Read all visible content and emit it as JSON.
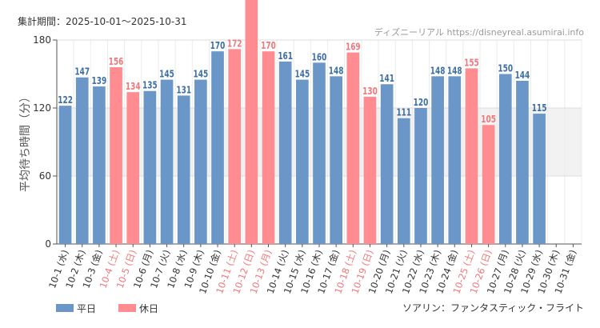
{
  "header": {
    "period_label": "集計期間：2025-10-01～2025-10-31",
    "credit": "ディズニーリアル https://disneyreal.asumirai.info"
  },
  "footer": {
    "attraction": "ソアリン：ファンタスティック・フライト"
  },
  "colors": {
    "weekday": "#6a97c8",
    "holiday": "#ff8c90",
    "weekday_label": "#3d6fa5",
    "holiday_label": "#f0787c",
    "band": "#f2f2f2",
    "axis_text": "#333333"
  },
  "chart_data": {
    "type": "bar",
    "ylabel": "平均待ち時間（分）",
    "ylim": [
      0,
      180
    ],
    "yticks": [
      0,
      60,
      120,
      180
    ],
    "shaded_band": [
      60,
      120
    ],
    "legend": [
      {
        "key": "weekday",
        "label": "平日"
      },
      {
        "key": "holiday",
        "label": "休日"
      }
    ],
    "legend_position": "bottom-left",
    "categories": [
      "10-1 (水)",
      "10-2 (木)",
      "10-3 (金)",
      "10-4 (土)",
      "10-5 (日)",
      "10-6 (月)",
      "10-7 (火)",
      "10-8 (水)",
      "10-9 (木)",
      "10-10 (金)",
      "10-11 (土)",
      "10-12 (日)",
      "10-13 (月)",
      "10-14 (火)",
      "10-15 (水)",
      "10-16 (木)",
      "10-17 (金)",
      "10-18 (土)",
      "10-19 (日)",
      "10-20 (月)",
      "10-21 (火)",
      "10-22 (水)",
      "10-23 (木)",
      "10-24 (金)",
      "10-25 (土)",
      "10-26 (日)",
      "10-27 (月)",
      "10-28 (火)",
      "10-29 (水)",
      "10-30 (木)",
      "10-31 (金)"
    ],
    "day_type": [
      "weekday",
      "weekday",
      "weekday",
      "holiday",
      "holiday",
      "weekday",
      "weekday",
      "weekday",
      "weekday",
      "weekday",
      "holiday",
      "holiday",
      "holiday",
      "weekday",
      "weekday",
      "weekday",
      "weekday",
      "holiday",
      "holiday",
      "weekday",
      "weekday",
      "weekday",
      "weekday",
      "weekday",
      "holiday",
      "holiday",
      "weekday",
      "weekday",
      "weekday",
      "weekday",
      "weekday"
    ],
    "values": [
      122,
      147,
      139,
      156,
      134,
      135,
      145,
      131,
      145,
      170,
      172,
      null,
      170,
      161,
      145,
      160,
      148,
      169,
      130,
      141,
      111,
      120,
      148,
      148,
      155,
      105,
      150,
      144,
      115,
      null,
      null
    ],
    "overflow_bars": [
      false,
      false,
      false,
      false,
      false,
      false,
      false,
      false,
      false,
      false,
      false,
      true,
      false,
      false,
      false,
      false,
      false,
      false,
      false,
      false,
      false,
      false,
      false,
      false,
      false,
      false,
      false,
      false,
      false,
      false,
      false
    ]
  }
}
